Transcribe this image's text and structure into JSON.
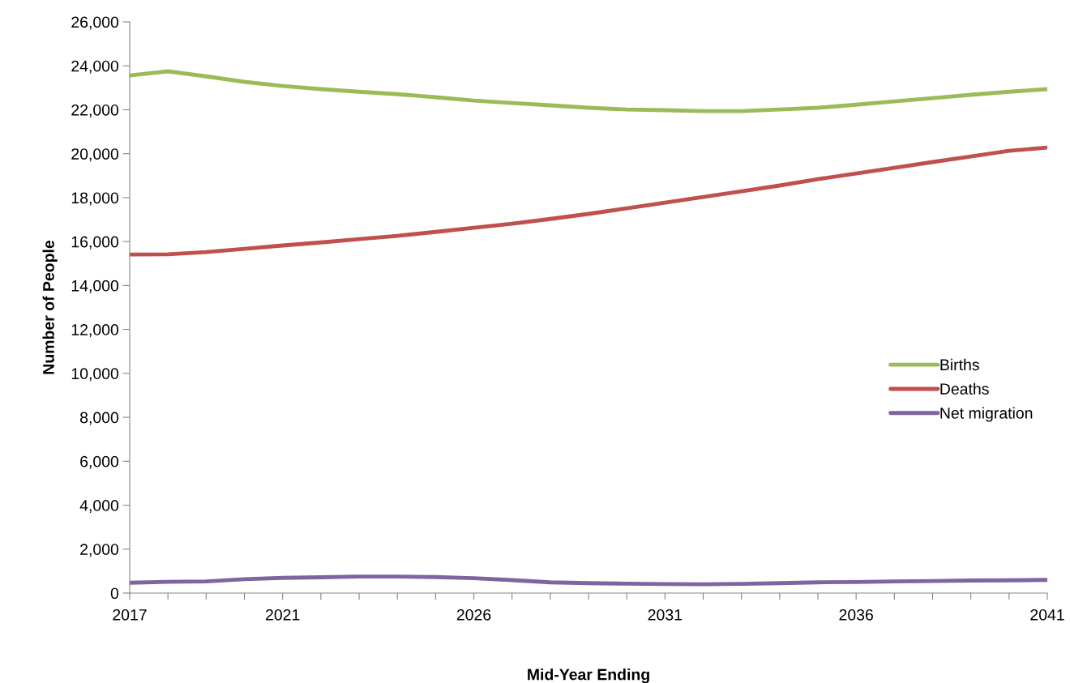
{
  "chart_data": {
    "type": "line",
    "xlabel": "Mid-Year Ending",
    "ylabel": "Number of People",
    "x": [
      2017,
      2018,
      2019,
      2020,
      2021,
      2022,
      2023,
      2024,
      2025,
      2026,
      2027,
      2028,
      2029,
      2030,
      2031,
      2032,
      2033,
      2034,
      2035,
      2036,
      2037,
      2038,
      2039,
      2040,
      2041
    ],
    "series": [
      {
        "name": "Births",
        "color": "#9bbb59",
        "values": [
          23560,
          23750,
          23520,
          23270,
          23080,
          22940,
          22820,
          22710,
          22570,
          22420,
          22310,
          22200,
          22090,
          22010,
          21980,
          21940,
          21940,
          22010,
          22090,
          22230,
          22380,
          22530,
          22680,
          22820,
          22940
        ]
      },
      {
        "name": "Deaths",
        "color": "#c0504d",
        "values": [
          15410,
          15420,
          15520,
          15670,
          15820,
          15960,
          16110,
          16260,
          16440,
          16630,
          16810,
          17030,
          17260,
          17510,
          17770,
          18030,
          18290,
          18550,
          18840,
          19100,
          19360,
          19620,
          19870,
          20130,
          20280
        ]
      },
      {
        "name": "Net migration",
        "color": "#8064a2",
        "values": [
          470,
          510,
          530,
          630,
          690,
          720,
          750,
          750,
          730,
          680,
          590,
          490,
          450,
          430,
          410,
          400,
          420,
          450,
          490,
          500,
          530,
          550,
          570,
          580,
          600
        ]
      }
    ],
    "xlim": [
      2017,
      2041
    ],
    "xticks": [
      2017,
      {
        "value": 2018,
        "label": null
      },
      {
        "value": 2019,
        "label": null
      },
      {
        "value": 2020,
        "label": null
      },
      2021,
      {
        "value": 2022,
        "label": null
      },
      {
        "value": 2023,
        "label": null
      },
      {
        "value": 2024,
        "label": null
      },
      {
        "value": 2025,
        "label": null
      },
      2026,
      {
        "value": 2027,
        "label": null
      },
      {
        "value": 2028,
        "label": null
      },
      {
        "value": 2029,
        "label": null
      },
      {
        "value": 2030,
        "label": null
      },
      2031,
      {
        "value": 2032,
        "label": null
      },
      {
        "value": 2033,
        "label": null
      },
      {
        "value": 2034,
        "label": null
      },
      {
        "value": 2035,
        "label": null
      },
      2036,
      {
        "value": 2037,
        "label": null
      },
      {
        "value": 2038,
        "label": null
      },
      {
        "value": 2039,
        "label": null
      },
      {
        "value": 2040,
        "label": null
      },
      2041
    ],
    "ylim": [
      0,
      26000
    ],
    "yticks": [
      {
        "value": 0,
        "label": "0"
      },
      {
        "value": 2000,
        "label": "2,000"
      },
      {
        "value": 4000,
        "label": "4,000"
      },
      {
        "value": 6000,
        "label": "6,000"
      },
      {
        "value": 8000,
        "label": "8,000"
      },
      {
        "value": 10000,
        "label": "10,000"
      },
      {
        "value": 12000,
        "label": "12,000"
      },
      {
        "value": 14000,
        "label": "14,000"
      },
      {
        "value": 16000,
        "label": "16,000"
      },
      {
        "value": 18000,
        "label": "18,000"
      },
      {
        "value": 20000,
        "label": "20,000"
      },
      {
        "value": 22000,
        "label": "22,000"
      },
      {
        "value": 24000,
        "label": "24,000"
      },
      {
        "value": 26000,
        "label": "26,000"
      }
    ],
    "grid": false,
    "legend": "right",
    "marker": "none",
    "line_style": "solid"
  }
}
